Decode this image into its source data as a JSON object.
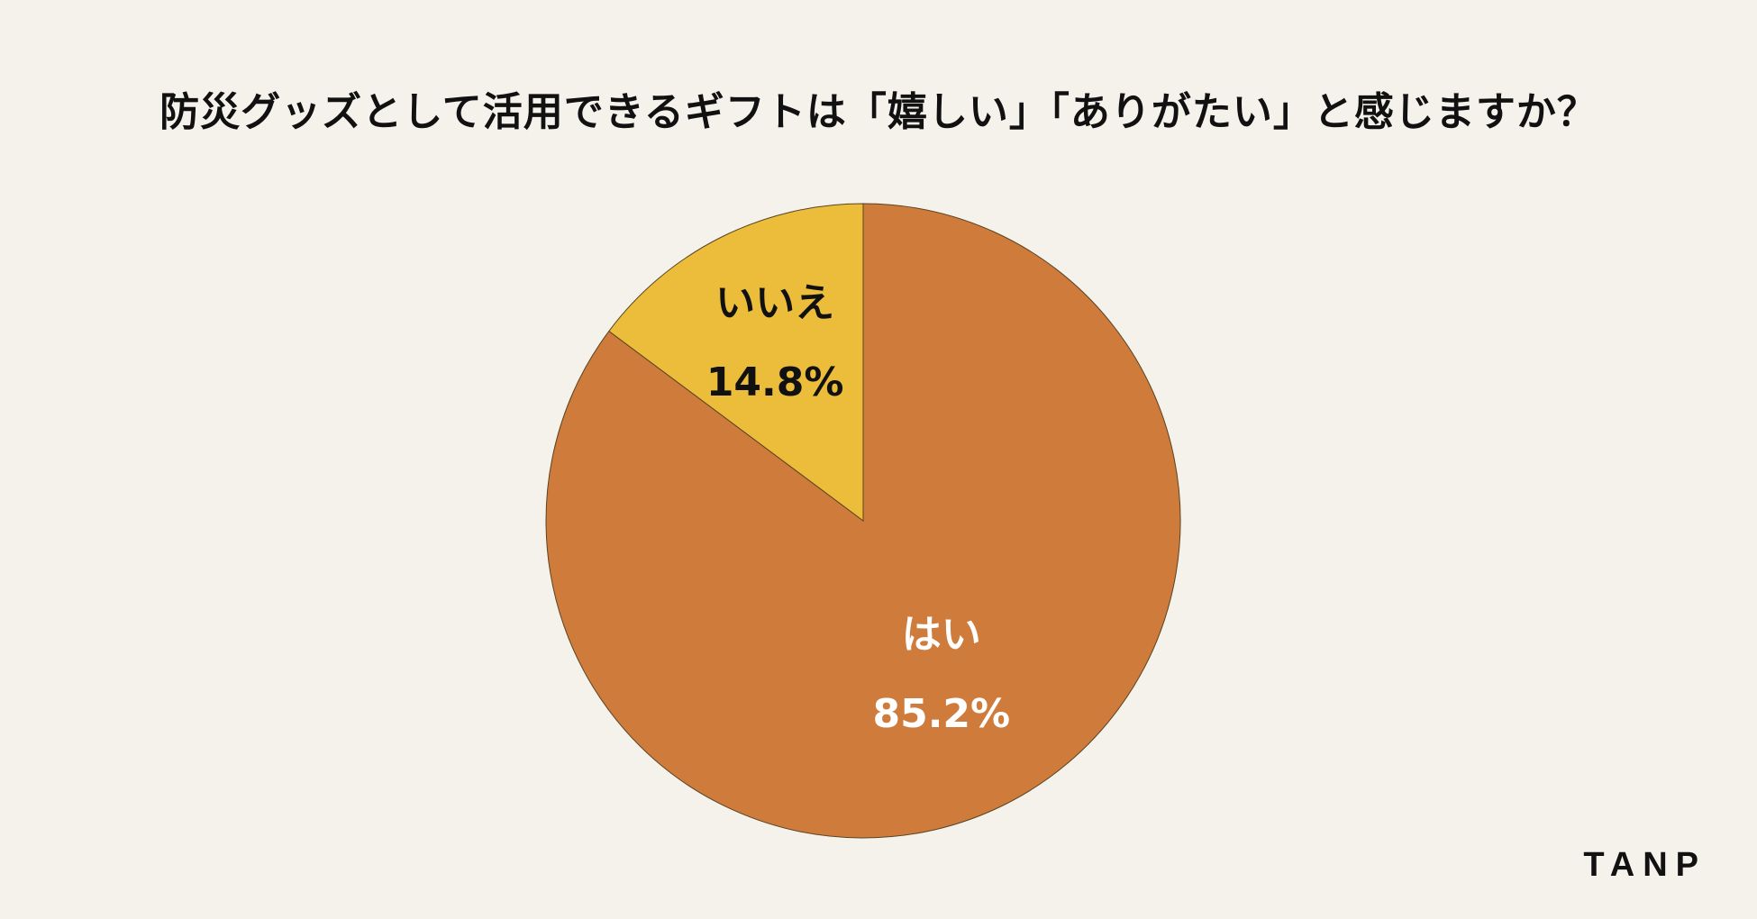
{
  "chart_data": {
    "type": "pie",
    "title": "防災グッズとして活用できるギフトは「嬉しい」「ありがたい」と感じますか？",
    "slices": [
      {
        "label": "はい",
        "value": 85.2,
        "display": "85.2%",
        "color": "#CF7B3C",
        "label_color": "#FFFFFF"
      },
      {
        "label": "いいえ",
        "value": 14.8,
        "display": "14.8%",
        "color": "#EBBD3A",
        "label_color": "#111111"
      }
    ],
    "start_angle": "12 o'clock",
    "direction": "clockwise",
    "legend": "none",
    "slice_border_color": "#5A4420"
  },
  "brand": {
    "name": "TANP"
  }
}
